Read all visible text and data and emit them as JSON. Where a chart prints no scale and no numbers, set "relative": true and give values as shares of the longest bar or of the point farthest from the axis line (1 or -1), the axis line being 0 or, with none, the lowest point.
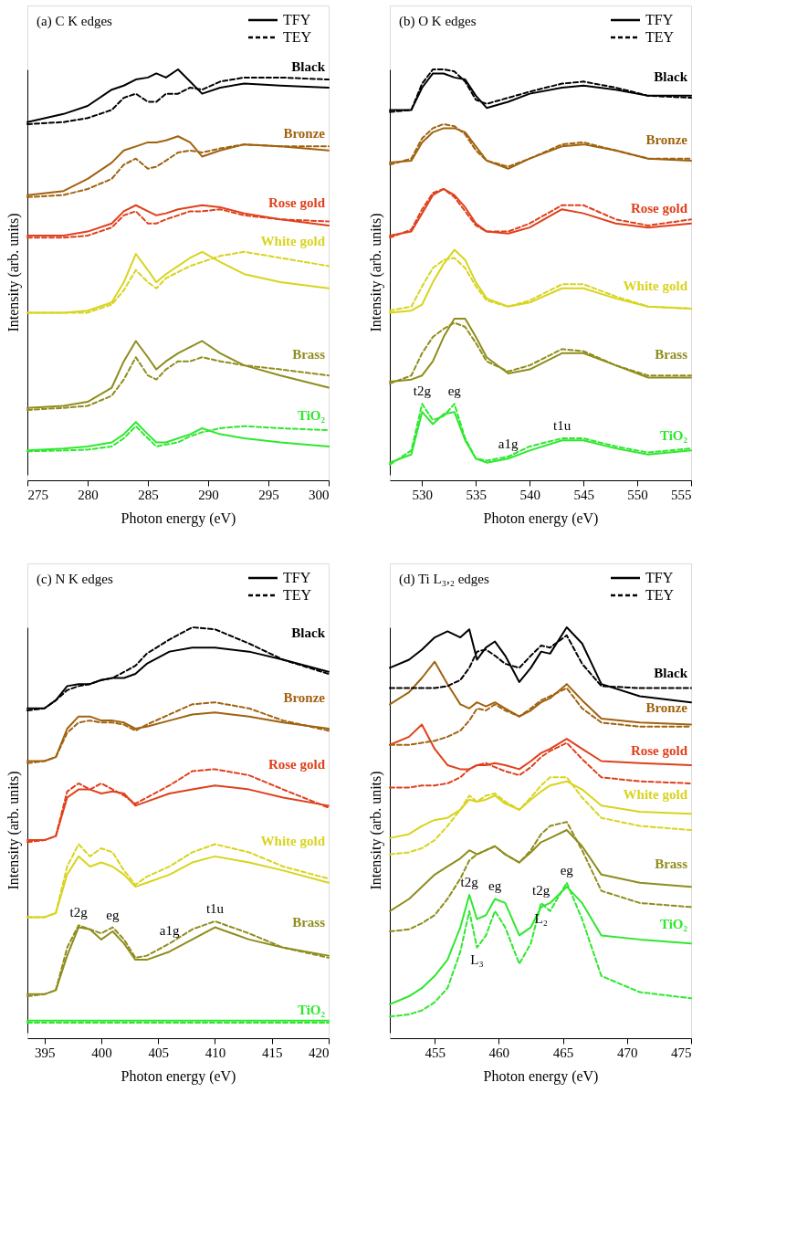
{
  "chart_data": [
    {
      "type": "line",
      "title": "(a) C K edges",
      "xlabel": "Photon energy (eV)",
      "ylabel": "Intensity (arb. units)",
      "relative": true,
      "tick_labels": "x",
      "legend": "top right",
      "xlim": [
        275,
        300
      ],
      "xticks": [
        275,
        280,
        285,
        290,
        295,
        300
      ],
      "annotations": [
        "TFY",
        "TEY"
      ],
      "x": [
        275,
        278,
        280,
        282,
        283,
        284,
        285,
        285.7,
        286.5,
        287.5,
        288.5,
        289.5,
        291,
        293,
        296,
        300
      ],
      "series": [
        {
          "name": "Black",
          "color": "#000000",
          "line_style": "solid",
          "values": [
            0.87,
            0.89,
            0.91,
            0.95,
            0.96,
            0.975,
            0.98,
            0.99,
            0.98,
            1.0,
            0.97,
            0.94,
            0.955,
            0.965,
            0.96,
            0.955
          ]
        },
        {
          "color": "#000000",
          "line_style": "dashed",
          "values": [
            0.865,
            0.87,
            0.88,
            0.9,
            0.93,
            0.94,
            0.92,
            0.92,
            0.94,
            0.94,
            0.955,
            0.95,
            0.97,
            0.98,
            0.98,
            0.975
          ]
        },
        {
          "name": "Bronze",
          "color": "#a0620f",
          "line_style": "solid",
          "values": [
            0.69,
            0.7,
            0.73,
            0.77,
            0.8,
            0.81,
            0.82,
            0.82,
            0.825,
            0.835,
            0.82,
            0.785,
            0.8,
            0.815,
            0.81,
            0.8
          ]
        },
        {
          "color": "#a0620f",
          "line_style": "dashed",
          "values": [
            0.685,
            0.69,
            0.705,
            0.73,
            0.765,
            0.78,
            0.755,
            0.76,
            0.775,
            0.795,
            0.8,
            0.795,
            0.805,
            0.815,
            0.81,
            0.81
          ]
        },
        {
          "name": "Rose gold",
          "color": "#e0401c",
          "line_style": "solid",
          "values": [
            0.59,
            0.59,
            0.6,
            0.62,
            0.65,
            0.665,
            0.65,
            0.64,
            0.645,
            0.655,
            0.66,
            0.665,
            0.66,
            0.645,
            0.63,
            0.615
          ]
        },
        {
          "color": "#e0401c",
          "line_style": "dashed",
          "values": [
            0.585,
            0.585,
            0.59,
            0.61,
            0.64,
            0.65,
            0.62,
            0.62,
            0.63,
            0.64,
            0.65,
            0.65,
            0.655,
            0.64,
            0.63,
            0.625
          ]
        },
        {
          "name": "White gold",
          "color": "#d8d41e",
          "line_style": "solid",
          "values": [
            0.4,
            0.4,
            0.405,
            0.425,
            0.475,
            0.545,
            0.505,
            0.475,
            0.495,
            0.515,
            0.535,
            0.55,
            0.525,
            0.495,
            0.475,
            0.46
          ]
        },
        {
          "color": "#d8d41e",
          "line_style": "dashed",
          "values": [
            0.4,
            0.4,
            0.4,
            0.42,
            0.455,
            0.505,
            0.475,
            0.46,
            0.485,
            0.5,
            0.515,
            0.525,
            0.54,
            0.55,
            0.535,
            0.515
          ]
        },
        {
          "name": "Brass",
          "color": "#8f8d1c",
          "line_style": "solid",
          "values": [
            0.165,
            0.17,
            0.18,
            0.215,
            0.28,
            0.33,
            0.29,
            0.26,
            0.28,
            0.3,
            0.315,
            0.33,
            0.3,
            0.27,
            0.245,
            0.215
          ]
        },
        {
          "color": "#8f8d1c",
          "line_style": "dashed",
          "values": [
            0.16,
            0.165,
            0.17,
            0.195,
            0.235,
            0.29,
            0.245,
            0.235,
            0.26,
            0.28,
            0.28,
            0.29,
            0.28,
            0.27,
            0.26,
            0.245
          ]
        },
        {
          "name": "TiO₂",
          "color": "#2ee82e",
          "line_style": "solid",
          "values": [
            0.06,
            0.065,
            0.07,
            0.08,
            0.1,
            0.13,
            0.1,
            0.08,
            0.08,
            0.09,
            0.1,
            0.115,
            0.1,
            0.09,
            0.08,
            0.07
          ]
        },
        {
          "color": "#2ee82e",
          "line_style": "dashed",
          "values": [
            0.058,
            0.06,
            0.062,
            0.07,
            0.09,
            0.12,
            0.09,
            0.07,
            0.075,
            0.08,
            0.095,
            0.105,
            0.115,
            0.12,
            0.115,
            0.11
          ]
        }
      ]
    },
    {
      "type": "line",
      "title": "(b) O K edges",
      "xlabel": "Photon energy (eV)",
      "ylabel": "Intensity (arb. units)",
      "relative": true,
      "tick_labels": "x",
      "legend": "top right",
      "xlim": [
        527,
        555
      ],
      "xticks": [
        530,
        535,
        540,
        545,
        550,
        555
      ],
      "annotations": [
        "TFY",
        "TEY",
        {
          "text": "t2g",
          "x": 530,
          "y": 0.175
        },
        {
          "text": "eg",
          "x": 533,
          "y": 0.175
        },
        {
          "text": "a1g",
          "x": 538,
          "y": 0.045
        },
        {
          "text": "t1u",
          "x": 543,
          "y": 0.09
        }
      ],
      "x": [
        527,
        529,
        530,
        531,
        532,
        533,
        534,
        535,
        536,
        538,
        540,
        543,
        545,
        548,
        551,
        555
      ],
      "series": [
        {
          "name": "Black",
          "color": "#000000",
          "line_style": "solid",
          "values": [
            0.9,
            0.9,
            0.955,
            0.99,
            0.99,
            0.98,
            0.975,
            0.935,
            0.905,
            0.92,
            0.94,
            0.955,
            0.96,
            0.95,
            0.935,
            0.935
          ]
        },
        {
          "color": "#000000",
          "line_style": "dashed",
          "values": [
            0.895,
            0.9,
            0.965,
            1.0,
            1.0,
            0.995,
            0.97,
            0.925,
            0.915,
            0.93,
            0.945,
            0.965,
            0.97,
            0.955,
            0.935,
            0.93
          ]
        },
        {
          "name": "Bronze",
          "color": "#a0620f",
          "line_style": "solid",
          "values": [
            0.77,
            0.775,
            0.82,
            0.845,
            0.855,
            0.855,
            0.845,
            0.81,
            0.775,
            0.755,
            0.78,
            0.81,
            0.815,
            0.8,
            0.78,
            0.775
          ]
        },
        {
          "color": "#a0620f",
          "line_style": "dashed",
          "values": [
            0.765,
            0.78,
            0.83,
            0.855,
            0.865,
            0.86,
            0.84,
            0.8,
            0.775,
            0.76,
            0.78,
            0.815,
            0.82,
            0.8,
            0.78,
            0.78
          ]
        },
        {
          "name": "Rose gold",
          "color": "#e0401c",
          "line_style": "solid",
          "values": [
            0.59,
            0.6,
            0.645,
            0.69,
            0.705,
            0.69,
            0.66,
            0.62,
            0.6,
            0.595,
            0.61,
            0.655,
            0.645,
            0.62,
            0.61,
            0.62
          ]
        },
        {
          "color": "#e0401c",
          "line_style": "dashed",
          "values": [
            0.585,
            0.605,
            0.655,
            0.695,
            0.705,
            0.685,
            0.65,
            0.615,
            0.6,
            0.6,
            0.62,
            0.665,
            0.665,
            0.63,
            0.615,
            0.63
          ]
        },
        {
          "name": "White gold",
          "color": "#d8d41e",
          "line_style": "solid",
          "values": [
            0.4,
            0.405,
            0.42,
            0.475,
            0.52,
            0.555,
            0.53,
            0.475,
            0.435,
            0.415,
            0.425,
            0.46,
            0.46,
            0.435,
            0.415,
            0.41
          ]
        },
        {
          "color": "#d8d41e",
          "line_style": "dashed",
          "values": [
            0.405,
            0.415,
            0.465,
            0.51,
            0.53,
            0.535,
            0.51,
            0.465,
            0.43,
            0.415,
            0.43,
            0.47,
            0.47,
            0.44,
            0.415,
            0.41
          ]
        },
        {
          "name": "Brass",
          "color": "#8f8d1c",
          "line_style": "solid",
          "values": [
            0.23,
            0.235,
            0.245,
            0.28,
            0.34,
            0.385,
            0.385,
            0.34,
            0.29,
            0.25,
            0.26,
            0.3,
            0.3,
            0.27,
            0.24,
            0.24
          ]
        },
        {
          "color": "#8f8d1c",
          "line_style": "dashed",
          "values": [
            0.225,
            0.245,
            0.3,
            0.34,
            0.36,
            0.375,
            0.365,
            0.325,
            0.28,
            0.255,
            0.27,
            0.31,
            0.305,
            0.27,
            0.245,
            0.245
          ]
        },
        {
          "name": "TiO₂",
          "color": "#2ee82e",
          "line_style": "solid",
          "values": [
            0.03,
            0.05,
            0.155,
            0.125,
            0.15,
            0.155,
            0.085,
            0.04,
            0.03,
            0.04,
            0.06,
            0.085,
            0.085,
            0.065,
            0.05,
            0.06
          ]
        },
        {
          "color": "#2ee82e",
          "line_style": "dashed",
          "values": [
            0.025,
            0.06,
            0.175,
            0.135,
            0.145,
            0.175,
            0.09,
            0.04,
            0.035,
            0.045,
            0.07,
            0.09,
            0.09,
            0.07,
            0.055,
            0.065
          ]
        }
      ]
    },
    {
      "type": "line",
      "title": "(c) N K edges",
      "xlabel": "Photon energy (eV)",
      "ylabel": "Intensity (arb. units)",
      "relative": true,
      "tick_labels": "x",
      "legend": "top right",
      "xlim": [
        393.5,
        420
      ],
      "xticks": [
        395,
        400,
        405,
        410,
        415,
        420
      ],
      "annotations": [
        "TFY",
        "TEY",
        {
          "text": "t2g",
          "x": 398,
          "y": 0.265
        },
        {
          "text": "eg",
          "x": 401,
          "y": 0.26
        },
        {
          "text": "a1g",
          "x": 406,
          "y": 0.22
        },
        {
          "text": "t1u",
          "x": 410,
          "y": 0.275
        }
      ],
      "x": [
        393.5,
        395,
        396,
        397,
        398,
        399,
        400,
        401,
        402,
        403,
        404,
        406,
        408,
        410,
        413,
        416,
        420
      ],
      "series": [
        {
          "name": "Black",
          "color": "#000000",
          "line_style": "solid",
          "values": [
            0.8,
            0.8,
            0.82,
            0.855,
            0.86,
            0.86,
            0.87,
            0.875,
            0.875,
            0.885,
            0.91,
            0.94,
            0.95,
            0.95,
            0.94,
            0.92,
            0.89
          ]
        },
        {
          "color": "#000000",
          "line_style": "dashed",
          "values": [
            0.795,
            0.8,
            0.82,
            0.845,
            0.855,
            0.86,
            0.87,
            0.875,
            0.89,
            0.905,
            0.935,
            0.97,
            1.0,
            0.995,
            0.96,
            0.92,
            0.885
          ]
        },
        {
          "name": "Bronze",
          "color": "#a0620f",
          "line_style": "solid",
          "values": [
            0.67,
            0.67,
            0.68,
            0.75,
            0.78,
            0.78,
            0.77,
            0.77,
            0.765,
            0.75,
            0.755,
            0.77,
            0.785,
            0.79,
            0.78,
            0.765,
            0.75
          ]
        },
        {
          "color": "#a0620f",
          "line_style": "dashed",
          "values": [
            0.665,
            0.67,
            0.68,
            0.74,
            0.765,
            0.77,
            0.765,
            0.765,
            0.76,
            0.745,
            0.76,
            0.785,
            0.81,
            0.815,
            0.8,
            0.77,
            0.745
          ]
        },
        {
          "name": "Rose gold",
          "color": "#e0401c",
          "line_style": "solid",
          "values": [
            0.475,
            0.475,
            0.485,
            0.58,
            0.6,
            0.6,
            0.59,
            0.595,
            0.59,
            0.56,
            0.57,
            0.59,
            0.6,
            0.61,
            0.6,
            0.58,
            0.56
          ]
        },
        {
          "color": "#e0401c",
          "line_style": "dashed",
          "values": [
            0.47,
            0.475,
            0.485,
            0.595,
            0.615,
            0.6,
            0.615,
            0.6,
            0.585,
            0.565,
            0.58,
            0.61,
            0.645,
            0.65,
            0.635,
            0.6,
            0.555
          ]
        },
        {
          "name": "White gold",
          "color": "#d8d41e",
          "line_style": "solid",
          "values": [
            0.285,
            0.285,
            0.295,
            0.39,
            0.435,
            0.41,
            0.42,
            0.41,
            0.39,
            0.36,
            0.37,
            0.39,
            0.42,
            0.435,
            0.42,
            0.4,
            0.37
          ]
        },
        {
          "color": "#d8d41e",
          "line_style": "dashed",
          "values": [
            0.285,
            0.285,
            0.295,
            0.41,
            0.465,
            0.435,
            0.455,
            0.445,
            0.4,
            0.365,
            0.385,
            0.41,
            0.445,
            0.465,
            0.445,
            0.41,
            0.38
          ]
        },
        {
          "name": "Brass",
          "color": "#8f8d1c",
          "line_style": "solid",
          "values": [
            0.095,
            0.095,
            0.105,
            0.19,
            0.26,
            0.255,
            0.23,
            0.25,
            0.22,
            0.18,
            0.18,
            0.2,
            0.23,
            0.26,
            0.23,
            0.21,
            0.19
          ]
        },
        {
          "color": "#8f8d1c",
          "line_style": "dashed",
          "values": [
            0.09,
            0.095,
            0.105,
            0.21,
            0.265,
            0.255,
            0.245,
            0.26,
            0.23,
            0.185,
            0.19,
            0.22,
            0.255,
            0.275,
            0.245,
            0.21,
            0.185
          ]
        },
        {
          "name": "TiO₂",
          "color": "#2ee82e",
          "line_style": "solid",
          "values": [
            0.03,
            0.03,
            0.03,
            0.03,
            0.03,
            0.03,
            0.03,
            0.03,
            0.03,
            0.03,
            0.03,
            0.03,
            0.03,
            0.03,
            0.03,
            0.03,
            0.03
          ]
        },
        {
          "color": "#2ee82e",
          "line_style": "dashed",
          "values": [
            0.025,
            0.025,
            0.025,
            0.025,
            0.025,
            0.025,
            0.025,
            0.025,
            0.025,
            0.025,
            0.025,
            0.025,
            0.025,
            0.025,
            0.025,
            0.025,
            0.025
          ]
        }
      ]
    },
    {
      "type": "line",
      "title": "(d) Ti L₃,₂ edges",
      "xlabel": "Photon energy (eV)",
      "ylabel": "Intensity (arb. units)",
      "relative": true,
      "tick_labels": "x",
      "legend": "top right",
      "xlim": [
        451.5,
        475
      ],
      "xticks": [
        455,
        460,
        465,
        470,
        475
      ],
      "annotations": [
        "TFY",
        "TEY",
        {
          "text": "t2g",
          "x": 457.7,
          "y": 0.34
        },
        {
          "text": "eg",
          "x": 459.7,
          "y": 0.33
        },
        {
          "text": "t2g",
          "x": 463.3,
          "y": 0.32
        },
        {
          "text": "eg",
          "x": 465.3,
          "y": 0.37
        },
        {
          "text": "L₃",
          "x": 458.3,
          "y": 0.21
        },
        {
          "text": "L₂",
          "x": 463.3,
          "y": 0.31
        }
      ],
      "x": [
        451.5,
        453,
        454,
        455,
        456,
        457,
        457.7,
        458.3,
        459,
        459.7,
        460.5,
        461.6,
        462.5,
        463.3,
        464,
        465.3,
        466.5,
        468,
        471,
        475
      ],
      "series": [
        {
          "name": "Black",
          "color": "#000000",
          "line_style": "solid",
          "values": [
            0.9,
            0.92,
            0.945,
            0.975,
            0.99,
            0.975,
            0.995,
            0.92,
            0.95,
            0.965,
            0.93,
            0.865,
            0.9,
            0.94,
            0.935,
            1.0,
            0.96,
            0.86,
            0.83,
            0.815
          ]
        },
        {
          "color": "#000000",
          "line_style": "dashed",
          "values": [
            0.85,
            0.85,
            0.85,
            0.85,
            0.855,
            0.87,
            0.9,
            0.94,
            0.945,
            0.93,
            0.91,
            0.9,
            0.93,
            0.955,
            0.95,
            0.98,
            0.91,
            0.855,
            0.85,
            0.85
          ]
        },
        {
          "name": "Bronze",
          "color": "#a0620f",
          "line_style": "solid",
          "values": [
            0.81,
            0.84,
            0.875,
            0.915,
            0.86,
            0.81,
            0.8,
            0.815,
            0.805,
            0.815,
            0.8,
            0.78,
            0.795,
            0.815,
            0.825,
            0.86,
            0.82,
            0.775,
            0.765,
            0.76
          ]
        },
        {
          "color": "#a0620f",
          "line_style": "dashed",
          "values": [
            0.71,
            0.71,
            0.715,
            0.72,
            0.73,
            0.745,
            0.77,
            0.8,
            0.795,
            0.81,
            0.795,
            0.78,
            0.8,
            0.82,
            0.83,
            0.85,
            0.8,
            0.765,
            0.755,
            0.755
          ]
        },
        {
          "name": "Rose gold",
          "color": "#e0401c",
          "line_style": "solid",
          "values": [
            0.71,
            0.73,
            0.76,
            0.7,
            0.66,
            0.65,
            0.65,
            0.66,
            0.66,
            0.665,
            0.66,
            0.65,
            0.67,
            0.69,
            0.7,
            0.725,
            0.7,
            0.67,
            0.665,
            0.66
          ]
        },
        {
          "color": "#e0401c",
          "line_style": "dashed",
          "values": [
            0.605,
            0.605,
            0.61,
            0.61,
            0.615,
            0.63,
            0.65,
            0.66,
            0.665,
            0.655,
            0.645,
            0.635,
            0.655,
            0.68,
            0.695,
            0.715,
            0.675,
            0.63,
            0.62,
            0.615
          ]
        },
        {
          "name": "White gold",
          "color": "#d8d41e",
          "line_style": "solid",
          "values": [
            0.48,
            0.49,
            0.51,
            0.525,
            0.53,
            0.55,
            0.575,
            0.57,
            0.575,
            0.585,
            0.565,
            0.55,
            0.575,
            0.595,
            0.61,
            0.62,
            0.6,
            0.56,
            0.545,
            0.54
          ]
        },
        {
          "color": "#d8d41e",
          "line_style": "dashed",
          "values": [
            0.44,
            0.445,
            0.455,
            0.475,
            0.51,
            0.55,
            0.585,
            0.57,
            0.585,
            0.59,
            0.57,
            0.55,
            0.58,
            0.61,
            0.63,
            0.63,
            0.58,
            0.53,
            0.51,
            0.5
          ]
        },
        {
          "name": "Brass",
          "color": "#8f8d1c",
          "line_style": "solid",
          "values": [
            0.3,
            0.33,
            0.36,
            0.39,
            0.41,
            0.43,
            0.45,
            0.44,
            0.45,
            0.46,
            0.44,
            0.42,
            0.445,
            0.47,
            0.48,
            0.5,
            0.46,
            0.39,
            0.37,
            0.36
          ]
        },
        {
          "color": "#8f8d1c",
          "line_style": "dashed",
          "values": [
            0.25,
            0.255,
            0.27,
            0.29,
            0.33,
            0.38,
            0.425,
            0.44,
            0.45,
            0.46,
            0.44,
            0.42,
            0.45,
            0.49,
            0.51,
            0.52,
            0.45,
            0.35,
            0.32,
            0.31
          ]
        },
        {
          "name": "TiO₂",
          "color": "#2ee82e",
          "line_style": "solid",
          "values": [
            0.07,
            0.09,
            0.11,
            0.14,
            0.18,
            0.26,
            0.34,
            0.28,
            0.29,
            0.33,
            0.32,
            0.24,
            0.26,
            0.31,
            0.32,
            0.36,
            0.32,
            0.24,
            0.23,
            0.22
          ]
        },
        {
          "color": "#2ee82e",
          "line_style": "dashed",
          "values": [
            0.04,
            0.045,
            0.055,
            0.075,
            0.11,
            0.2,
            0.3,
            0.21,
            0.24,
            0.3,
            0.26,
            0.17,
            0.22,
            0.32,
            0.3,
            0.37,
            0.28,
            0.14,
            0.1,
            0.085
          ]
        }
      ]
    }
  ]
}
